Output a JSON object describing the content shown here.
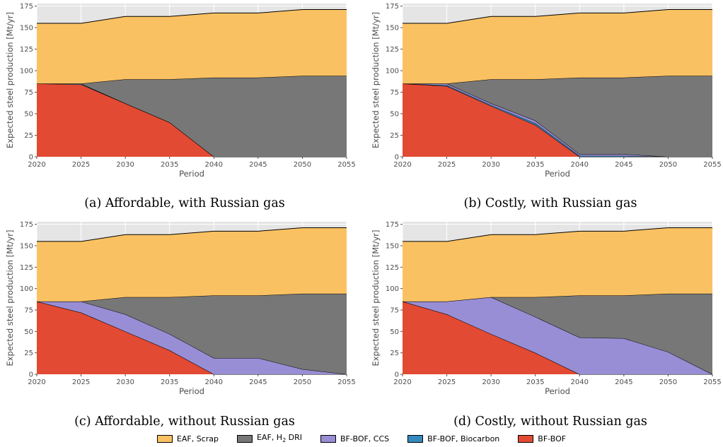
{
  "chart_data": [
    {
      "type": "area",
      "caption": "(a) Affordable, with Russian gas",
      "xlabel": "Period",
      "ylabel": "Expected steel production [Mt/yr]",
      "x": [
        2020,
        2025,
        2030,
        2035,
        2040,
        2045,
        2050,
        2055
      ],
      "xticks": [
        "2020",
        "2025",
        "2030",
        "2035",
        "2040",
        "2045",
        "2050",
        "2055"
      ],
      "yticks": [
        "0",
        "25",
        "50",
        "75",
        "100",
        "125",
        "150",
        "175"
      ],
      "xlim": [
        2020,
        2055
      ],
      "ylim": [
        0,
        178
      ],
      "grid": true,
      "stacked": true,
      "series": [
        {
          "name": "BF-BOF",
          "values": [
            85,
            84,
            62,
            40,
            0,
            0,
            0,
            0
          ]
        },
        {
          "name": "BF-BOF, Biocarbon",
          "values": [
            0,
            1,
            0,
            0,
            0,
            0,
            0,
            0
          ]
        },
        {
          "name": "BF-BOF, CCS",
          "values": [
            0,
            0,
            0,
            0,
            0,
            0,
            0,
            0
          ]
        },
        {
          "name": "EAF, H2 DRI",
          "values": [
            0,
            0,
            28,
            50,
            92,
            92,
            94,
            94
          ]
        },
        {
          "name": "EAF, Scrap",
          "values": [
            70,
            70,
            73,
            73,
            75,
            75,
            77,
            77
          ]
        }
      ]
    },
    {
      "type": "area",
      "caption": "(b) Costly, with Russian gas",
      "xlabel": "Period",
      "ylabel": "Expected steel production [Mt/yr]",
      "x": [
        2020,
        2025,
        2030,
        2035,
        2040,
        2045,
        2050,
        2055
      ],
      "xticks": [
        "2020",
        "2025",
        "2030",
        "2035",
        "2040",
        "2045",
        "2050",
        "2055"
      ],
      "yticks": [
        "0",
        "25",
        "50",
        "75",
        "100",
        "125",
        "150",
        "175"
      ],
      "xlim": [
        2020,
        2055
      ],
      "ylim": [
        0,
        178
      ],
      "grid": true,
      "stacked": true,
      "series": [
        {
          "name": "BF-BOF",
          "values": [
            85,
            82,
            59,
            37,
            0,
            0,
            0,
            0
          ]
        },
        {
          "name": "BF-BOF, Biocarbon",
          "values": [
            0,
            1,
            1,
            2,
            1,
            1,
            0,
            0
          ]
        },
        {
          "name": "BF-BOF, CCS",
          "values": [
            0,
            2,
            2,
            3,
            2,
            2,
            0,
            0
          ]
        },
        {
          "name": "EAF, H2 DRI",
          "values": [
            0,
            0,
            28,
            48,
            89,
            89,
            94,
            94
          ]
        },
        {
          "name": "EAF, Scrap",
          "values": [
            70,
            70,
            73,
            73,
            75,
            75,
            77,
            77
          ]
        }
      ]
    },
    {
      "type": "area",
      "caption": "(c) Affordable, without Russian gas",
      "xlabel": "Period",
      "ylabel": "Expected steel production [Mt/yr]",
      "x": [
        2020,
        2025,
        2030,
        2035,
        2040,
        2045,
        2050,
        2055
      ],
      "xticks": [
        "2020",
        "2025",
        "2030",
        "2035",
        "2040",
        "2045",
        "2050",
        "2055"
      ],
      "yticks": [
        "0",
        "25",
        "50",
        "75",
        "100",
        "125",
        "150",
        "175"
      ],
      "xlim": [
        2020,
        2055
      ],
      "ylim": [
        0,
        178
      ],
      "grid": true,
      "stacked": true,
      "series": [
        {
          "name": "BF-BOF",
          "values": [
            85,
            72,
            50,
            28,
            0,
            0,
            0,
            0
          ]
        },
        {
          "name": "BF-BOF, Biocarbon",
          "values": [
            0,
            0,
            0,
            0,
            0,
            0,
            0,
            0
          ]
        },
        {
          "name": "BF-BOF, CCS",
          "values": [
            0,
            13,
            20,
            19,
            19,
            19,
            6,
            0
          ]
        },
        {
          "name": "EAF, H2 DRI",
          "values": [
            0,
            0,
            20,
            43,
            73,
            73,
            88,
            94
          ]
        },
        {
          "name": "EAF, Scrap",
          "values": [
            70,
            70,
            73,
            73,
            75,
            75,
            77,
            77
          ]
        }
      ]
    },
    {
      "type": "area",
      "caption": "(d) Costly, without Russian gas",
      "xlabel": "Period",
      "ylabel": "Expected steel production [Mt/yr]",
      "x": [
        2020,
        2025,
        2030,
        2035,
        2040,
        2045,
        2050,
        2055
      ],
      "xticks": [
        "2020",
        "2025",
        "2030",
        "2035",
        "2040",
        "2045",
        "2050",
        "2055"
      ],
      "yticks": [
        "0",
        "25",
        "50",
        "75",
        "100",
        "125",
        "150",
        "175"
      ],
      "xlim": [
        2020,
        2055
      ],
      "ylim": [
        0,
        178
      ],
      "grid": true,
      "stacked": true,
      "series": [
        {
          "name": "BF-BOF",
          "values": [
            85,
            70,
            47,
            25,
            0,
            0,
            0,
            0
          ]
        },
        {
          "name": "BF-BOF, Biocarbon",
          "values": [
            0,
            0,
            0,
            0,
            0,
            0,
            0,
            0
          ]
        },
        {
          "name": "BF-BOF, CCS",
          "values": [
            0,
            15,
            43,
            42,
            43,
            42,
            26,
            0
          ]
        },
        {
          "name": "EAF, H2 DRI",
          "values": [
            0,
            0,
            0,
            23,
            49,
            50,
            68,
            94
          ]
        },
        {
          "name": "EAF, Scrap",
          "values": [
            70,
            70,
            73,
            73,
            75,
            75,
            77,
            77
          ]
        }
      ]
    }
  ],
  "legend": {
    "placement": "bottom-center",
    "items": [
      {
        "label": "EAF, Scrap",
        "key": "EAF, Scrap",
        "color": "#fac163"
      },
      {
        "label": "EAF, H",
        "sub": "2",
        "suffix": " DRI",
        "key": "EAF, H2 DRI",
        "color": "#777777"
      },
      {
        "label": "BF-BOF, CCS",
        "key": "BF-BOF, CCS",
        "color": "#988ed5"
      },
      {
        "label": "BF-BOF, Biocarbon",
        "key": "BF-BOF, Biocarbon",
        "color": "#348abd"
      },
      {
        "label": "BF-BOF",
        "key": "BF-BOF",
        "color": "#e24a33"
      }
    ]
  },
  "colors": {
    "EAF, Scrap": "#fac163",
    "EAF, H2 DRI": "#777777",
    "BF-BOF, CCS": "#988ed5",
    "BF-BOF, Biocarbon": "#348abd",
    "BF-BOF": "#e24a33",
    "plot_background": "#e5e5e5",
    "grid": "#ffffff"
  }
}
